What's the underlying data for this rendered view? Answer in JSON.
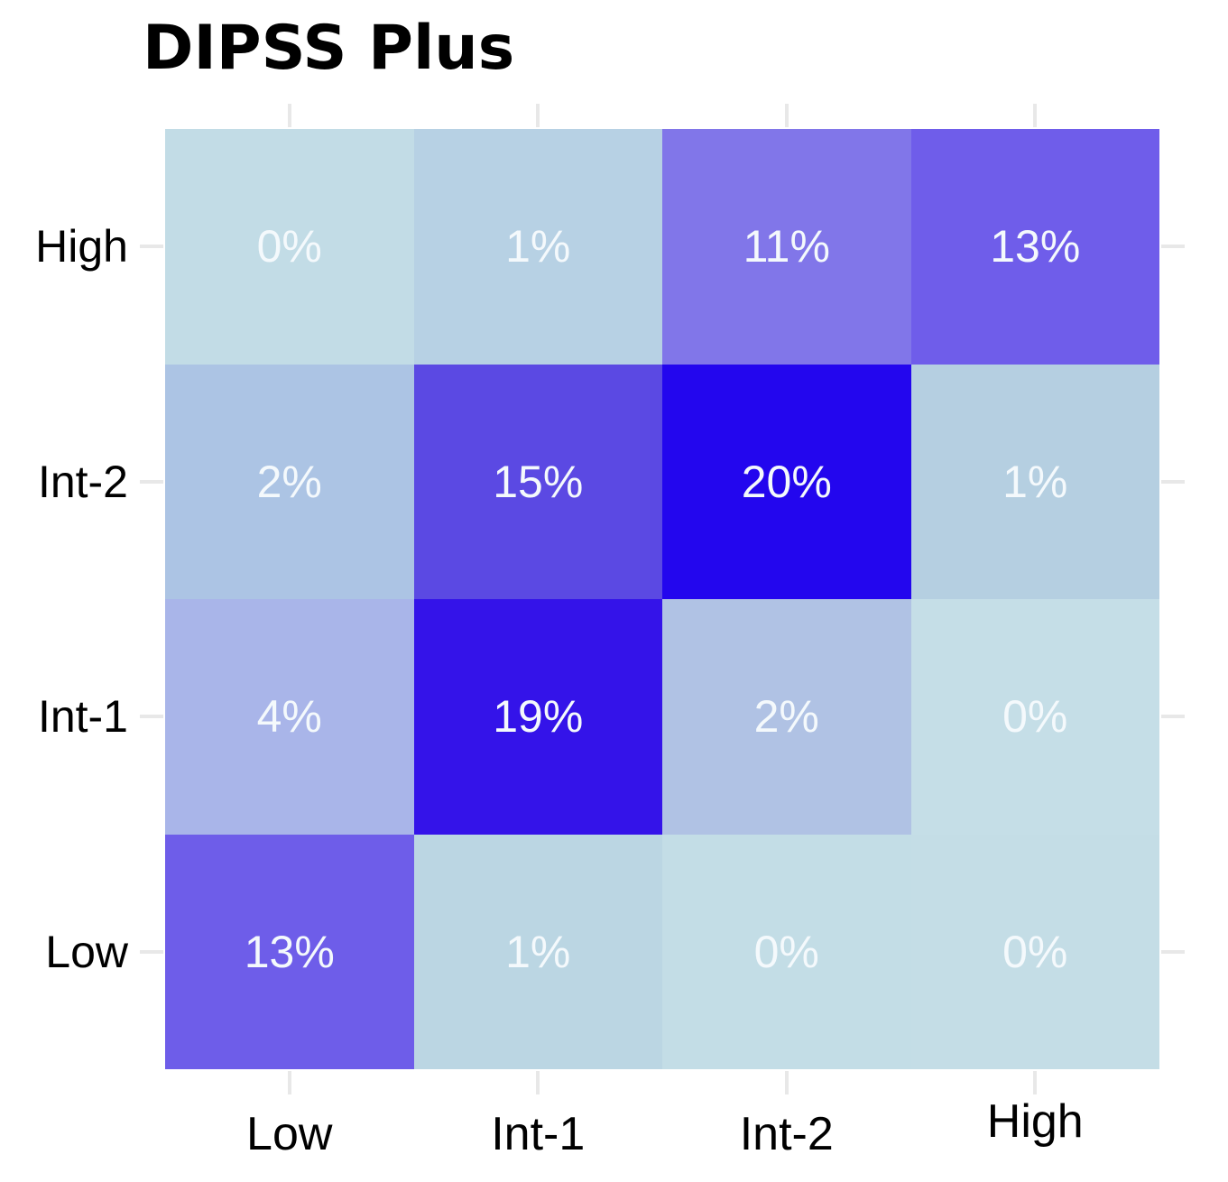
{
  "chart_data": {
    "type": "heatmap",
    "title": "DIPSS Plus",
    "x_axis": {
      "categories": [
        "Low",
        "Int-1",
        "Int-2",
        "High"
      ]
    },
    "y_axis": {
      "categories_top_to_bottom": [
        "High",
        "Int-2",
        "Int-1",
        "Low"
      ]
    },
    "value_unit": "%",
    "value_range": [
      0,
      20
    ],
    "rows": [
      {
        "label": "High",
        "cells": [
          {
            "text": "0%",
            "value": 0,
            "color": "#c2dce6"
          },
          {
            "text": "1%",
            "value": 1,
            "color": "#b7d1e4"
          },
          {
            "text": "11%",
            "value": 11,
            "color": "#8176e9"
          },
          {
            "text": "13%",
            "value": 13,
            "color": "#6f5dea"
          }
        ]
      },
      {
        "label": "Int-2",
        "cells": [
          {
            "text": "2%",
            "value": 2,
            "color": "#acc4e4"
          },
          {
            "text": "15%",
            "value": 15,
            "color": "#5b49e3"
          },
          {
            "text": "20%",
            "value": 20,
            "color": "#2306ee"
          },
          {
            "text": "1%",
            "value": 1,
            "color": "#b5cfe1"
          }
        ]
      },
      {
        "label": "Int-1",
        "cells": [
          {
            "text": "4%",
            "value": 4,
            "color": "#a9b5e9"
          },
          {
            "text": "19%",
            "value": 19,
            "color": "#3413e9"
          },
          {
            "text": "2%",
            "value": 2,
            "color": "#b0c2e4"
          },
          {
            "text": "0%",
            "value": 0,
            "color": "#c5dee7"
          }
        ]
      },
      {
        "label": "Low",
        "cells": [
          {
            "text": "13%",
            "value": 13,
            "color": "#6e5de9"
          },
          {
            "text": "1%",
            "value": 1,
            "color": "#bbd6e3"
          },
          {
            "text": "0%",
            "value": 0,
            "color": "#c3dde6"
          },
          {
            "text": "0%",
            "value": 0,
            "color": "#c4dde6"
          }
        ]
      }
    ],
    "colors": {
      "cell_text": "#f4f9fc",
      "axis_label": "#000000",
      "title": "#000000",
      "tick": "#e8e8e8",
      "background": "#ffffff",
      "scale_low": "#c3dde6",
      "scale_high": "#2306ee"
    },
    "layout_hints": {
      "grid": false,
      "legend": false,
      "ticks": "all-four-sides-at-category-centers"
    }
  }
}
